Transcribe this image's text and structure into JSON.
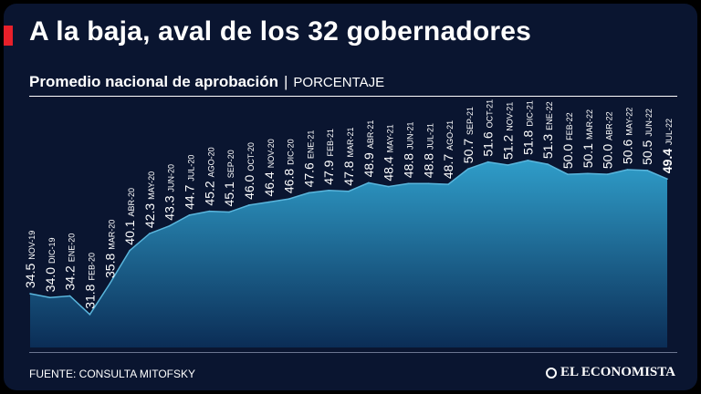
{
  "title": "A la baja, aval de los 32 gobernadores",
  "subtitle": {
    "main": "Promedio nacional de aprobación",
    "separator": "|",
    "unit": "PORCENTAJE"
  },
  "source": "FUENTE: CONSULTA MITOFSKY",
  "brand": "EL ECONOMISTA",
  "colors": {
    "background": "#0a1530",
    "area_top": "#2f9dc9",
    "area_bottom": "#0b2d56",
    "line": "#5ab6dd",
    "text": "#ffffff",
    "accent_red": "#e8202a"
  },
  "chart_data": {
    "type": "area",
    "title": "Promedio nacional de aprobación",
    "ylabel": "PORCENTAJE",
    "ylim": [
      30,
      52.5
    ],
    "categories": [
      "NOV-19",
      "DIC-19",
      "ENE-20",
      "FEB-20",
      "MAR-20",
      "ABR-20",
      "MAY-20",
      "JUN-20",
      "JUL-20",
      "AGO-20",
      "SEP-20",
      "OCT-20",
      "NOV-20",
      "DIC-20",
      "ENE-21",
      "FEB-21",
      "MAR-21",
      "ABR-21",
      "MAY-21",
      "JUN-21",
      "JUL-21",
      "AGO-21",
      "SEP-21",
      "OCT-21",
      "NOV-21",
      "DIC-21",
      "ENE-22",
      "FEB-22",
      "MAR-22",
      "ABR-22",
      "MAY-22",
      "JUN-22",
      "JUL-22"
    ],
    "values": [
      34.5,
      34.0,
      34.2,
      31.8,
      35.8,
      40.1,
      42.3,
      43.3,
      44.7,
      45.2,
      45.1,
      46.0,
      46.4,
      46.8,
      47.6,
      47.9,
      47.8,
      48.9,
      48.4,
      48.8,
      48.8,
      48.7,
      50.7,
      51.6,
      51.2,
      51.8,
      51.3,
      50.0,
      50.1,
      50.0,
      50.6,
      50.5,
      49.4
    ],
    "value_labels": [
      "34.5",
      "34.0",
      "34.2",
      "31.8",
      "35.8",
      "40.1",
      "42.3",
      "43.3",
      "44.7",
      "45.2",
      "45.1",
      "46.0",
      "46.4",
      "46.8",
      "47.6",
      "47.9",
      "47.8",
      "48.9",
      "48.4",
      "48.8",
      "48.8",
      "48.7",
      "50.7",
      "51.6",
      "51.2",
      "51.8",
      "51.3",
      "50.0",
      "50.1",
      "50.0",
      "50.6",
      "50.5",
      "49.4"
    ],
    "highlight_last": true,
    "grid": false
  }
}
